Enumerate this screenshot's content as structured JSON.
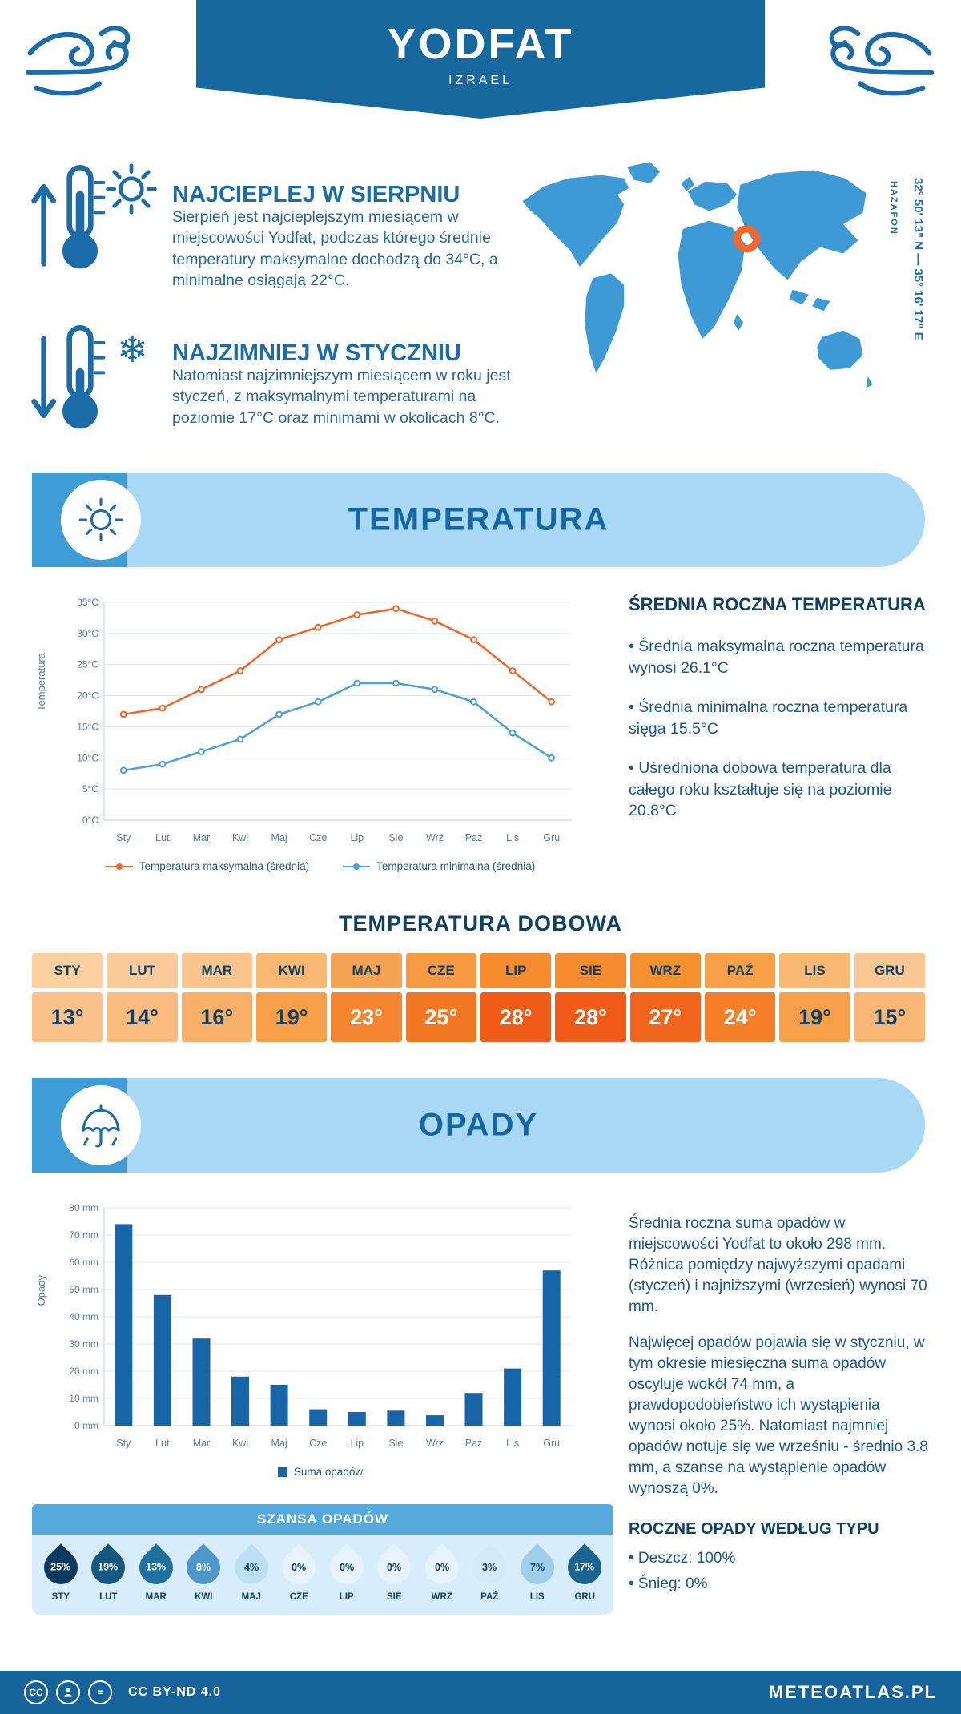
{
  "header": {
    "title": "YODFAT",
    "subtitle": "IZRAEL"
  },
  "coords": {
    "latlon": "32° 50' 13\" N — 35° 16' 17\" E",
    "region": "HAZAFON"
  },
  "warmest": {
    "heading": "NAJCIEPLEJ W SIERPNIU",
    "text": "Sierpień jest najcieplejszym miesiącem w miejscowości Yodfat, podczas którego średnie temperatury maksymalne dochodzą do 34°C, a minimalne osiągają 22°C."
  },
  "coldest": {
    "heading": "NAJZIMNIEJ W STYCZNIU",
    "text": "Natomiast najzimniejszym miesiącem w roku jest styczeń, z maksymalnymi temperaturami na poziomie 17°C oraz minimami w okolicach 8°C."
  },
  "temperature_section": {
    "title": "TEMPERATURA",
    "summary_heading": "ŚREDNIA ROCZNA TEMPERATURA",
    "bullets": [
      "Średnia maksymalna roczna temperatura wynosi 26.1°C",
      "Średnia minimalna roczna temperatura sięga 15.5°C",
      "Uśredniona dobowa temperatura dla całego roku kształtuje się na poziomie 20.8°C"
    ]
  },
  "daily_temperature": {
    "heading": "TEMPERATURA DOBOWA",
    "cells": [
      {
        "month": "STY",
        "value": "13°",
        "header_bg": "#FBCFA0",
        "cell_bg": "#FAC28A",
        "fg": "#0E4166"
      },
      {
        "month": "LUT",
        "value": "14°",
        "header_bg": "#FACB99",
        "cell_bg": "#F9BC7E",
        "fg": "#0E4166"
      },
      {
        "month": "MAR",
        "value": "16°",
        "header_bg": "#FAC48C",
        "cell_bg": "#F8B069",
        "fg": "#0E4166"
      },
      {
        "month": "KWI",
        "value": "19°",
        "header_bg": "#F9B872",
        "cell_bg": "#F79E49",
        "fg": "#0E4166"
      },
      {
        "month": "MAJ",
        "value": "23°",
        "header_bg": "#F7A452",
        "cell_bg": "#F5852F",
        "fg": "#FFFFFF"
      },
      {
        "month": "CZE",
        "value": "25°",
        "header_bg": "#F69B43",
        "cell_bg": "#F37722",
        "fg": "#FFFFFF"
      },
      {
        "month": "LIP",
        "value": "28°",
        "header_bg": "#F58A2E",
        "cell_bg": "#F05B17",
        "fg": "#FFFFFF"
      },
      {
        "month": "SIE",
        "value": "28°",
        "header_bg": "#F58A2E",
        "cell_bg": "#F05B17",
        "fg": "#FFFFFF"
      },
      {
        "month": "WRZ",
        "value": "27°",
        "header_bg": "#F5902F",
        "cell_bg": "#F1641B",
        "fg": "#FFFFFF"
      },
      {
        "month": "PAŹ",
        "value": "24°",
        "header_bg": "#F7A048",
        "cell_bg": "#F47F28",
        "fg": "#FFFFFF"
      },
      {
        "month": "LIS",
        "value": "19°",
        "header_bg": "#F9B872",
        "cell_bg": "#F79E49",
        "fg": "#0E4166"
      },
      {
        "month": "GRU",
        "value": "15°",
        "header_bg": "#FAC794",
        "cell_bg": "#F9B674",
        "fg": "#0E4166"
      }
    ]
  },
  "precipitation_section": {
    "title": "OPADY",
    "paragraph1": "Średnia roczna suma opadów w miejscowości Yodfat to około 298 mm. Różnica pomiędzy najwyższymi opadami (styczeń) i najniższymi (wrzesień) wynosi 70 mm.",
    "paragraph2": "Najwięcej opadów pojawia się w styczniu, w tym okresie miesięczna suma opadów oscyluje wokół 74 mm, a prawdopodobieństwo ich wystąpienia wynosi około 25%. Natomiast najmniej opadów notuje się we wrześniu - średnio 3.8 mm, a szanse na wystąpienie opadów wynoszą 0%.",
    "chance_heading": "SZANSA OPADÓW",
    "chance": [
      {
        "month": "STY",
        "value": "25%",
        "bg": "#0C3A5E",
        "fg": "#FFFFFF"
      },
      {
        "month": "LUT",
        "value": "19%",
        "bg": "#155880",
        "fg": "#FFFFFF"
      },
      {
        "month": "MAR",
        "value": "13%",
        "bg": "#20719F",
        "fg": "#FFFFFF"
      },
      {
        "month": "KWI",
        "value": "8%",
        "bg": "#4E97C8",
        "fg": "#FFFFFF"
      },
      {
        "month": "MAJ",
        "value": "4%",
        "bg": "#BCDFF4",
        "fg": "#0C3A5E"
      },
      {
        "month": "CZE",
        "value": "0%",
        "bg": "#E6F3FC",
        "fg": "#0C3A5E"
      },
      {
        "month": "LIP",
        "value": "0%",
        "bg": "#E6F3FC",
        "fg": "#0C3A5E"
      },
      {
        "month": "SIE",
        "value": "0%",
        "bg": "#E6F3FC",
        "fg": "#0C3A5E"
      },
      {
        "month": "WRZ",
        "value": "0%",
        "bg": "#E6F3FC",
        "fg": "#0C3A5E"
      },
      {
        "month": "PAŹ",
        "value": "3%",
        "bg": "#D4EAF8",
        "fg": "#0C3A5E"
      },
      {
        "month": "LIS",
        "value": "7%",
        "bg": "#9FCEEA",
        "fg": "#0C3A5E"
      },
      {
        "month": "GRU",
        "value": "17%",
        "bg": "#1B648F",
        "fg": "#FFFFFF"
      }
    ],
    "type_heading": "ROCZNE OPADY WEDŁUG TYPU",
    "type_bullets": [
      "Deszcz: 100%",
      "Śnieg: 0%"
    ]
  },
  "chart_data": [
    {
      "type": "line",
      "categories": [
        "Sty",
        "Lut",
        "Mar",
        "Kwi",
        "Maj",
        "Cze",
        "Lip",
        "Sie",
        "Wrz",
        "Paź",
        "Lis",
        "Gru"
      ],
      "series": [
        {
          "name": "Temperatura maksymalna (średnia)",
          "color": "#F4632A",
          "values": [
            17,
            18,
            21,
            24,
            29,
            31,
            33,
            34,
            32,
            29,
            24,
            19
          ]
        },
        {
          "name": "Temperatura minimalna (średnia)",
          "color": "#4AA0D8",
          "values": [
            8,
            9,
            11,
            13,
            17,
            19,
            22,
            22,
            21,
            19,
            14,
            10
          ]
        }
      ],
      "ylabel": "Temperatura",
      "ylim": [
        0,
        35
      ],
      "ytick_step": 5,
      "ytick_suffix": "°C",
      "grid": true,
      "legend_position": "bottom"
    },
    {
      "type": "bar",
      "categories": [
        "Sty",
        "Lut",
        "Mar",
        "Kwi",
        "Maj",
        "Cze",
        "Lip",
        "Sie",
        "Wrz",
        "Paź",
        "Lis",
        "Gru"
      ],
      "series": [
        {
          "name": "Suma opadów",
          "color": "#1765A6",
          "values": [
            74,
            48,
            32,
            18,
            15,
            6,
            5,
            5.5,
            3.8,
            12,
            21,
            57
          ]
        }
      ],
      "ylabel": "Opady",
      "ylim": [
        0,
        80
      ],
      "ytick_step": 10,
      "ytick_suffix": " mm",
      "grid": true,
      "legend_position": "bottom"
    }
  ],
  "footer": {
    "license": "CC BY-ND 4.0",
    "brand": "METEOATLAS.PL"
  }
}
